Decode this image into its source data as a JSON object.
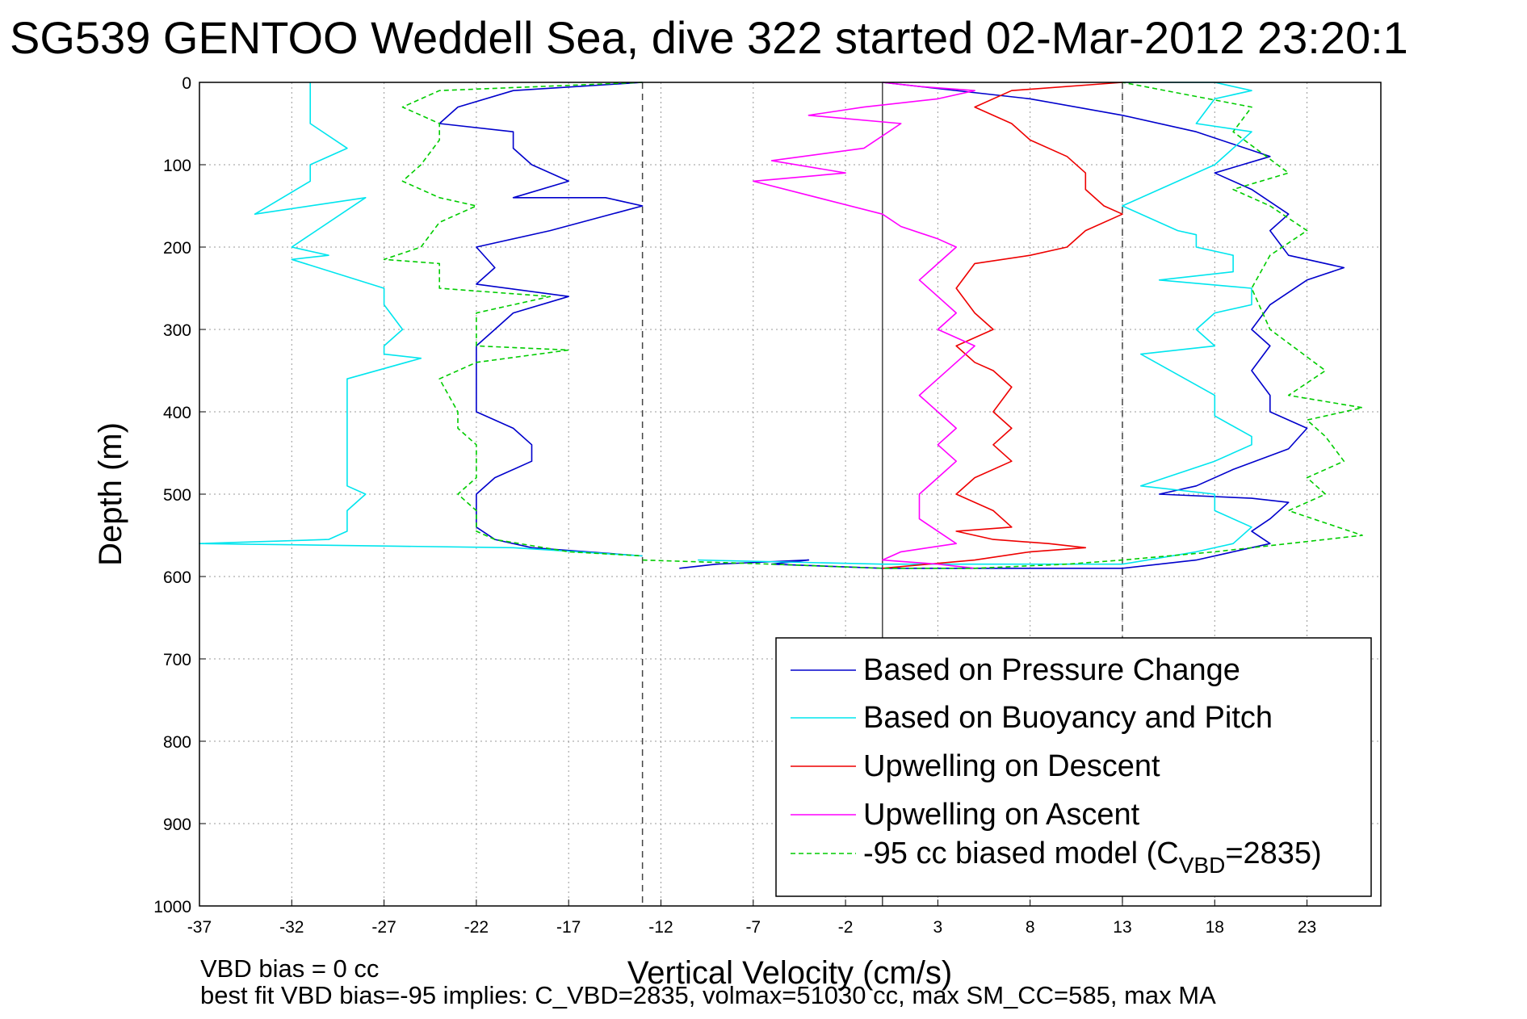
{
  "chart_data": {
    "type": "line",
    "title": "SG539 GENTOO Weddell Sea, dive 322 started 02-Mar-2012 23:20:1",
    "xlabel": "Vertical Velocity (cm/s)",
    "ylabel": "Depth (m)",
    "xlim": [
      -37,
      27
    ],
    "ylim": [
      1000,
      0
    ],
    "y_reversed": true,
    "grid": true,
    "xticks": [
      -37,
      -32,
      -27,
      -22,
      -17,
      -12,
      -7,
      -2,
      3,
      8,
      13,
      18,
      23
    ],
    "yticks": [
      0,
      100,
      200,
      300,
      400,
      500,
      600,
      700,
      800,
      900,
      1000
    ],
    "legend_position": "lower-right",
    "reference_lines": {
      "solid_vertical_x": 0,
      "dashed_vertical_x": [
        -13,
        13
      ]
    },
    "series": [
      {
        "name": "Based on Pressure Change",
        "color": "#0000cc",
        "style": "solid",
        "descent": {
          "x": [
            -13,
            -20,
            -23,
            -24,
            -20,
            -20,
            -19,
            -17,
            -20,
            -15,
            -13,
            -18,
            -22,
            -21,
            -22,
            -17,
            -20,
            -21,
            -22,
            -22,
            -22,
            -22,
            -20,
            -19,
            -19,
            -21,
            -22,
            -22,
            -22,
            -21,
            -19,
            -13
          ],
          "y": [
            0,
            10,
            30,
            50,
            60,
            80,
            100,
            120,
            140,
            140,
            150,
            180,
            200,
            225,
            245,
            260,
            280,
            300,
            320,
            345,
            380,
            400,
            420,
            440,
            460,
            480,
            500,
            520,
            540,
            555,
            565,
            575
          ]
        },
        "ascent": {
          "x": [
            -11,
            -9,
            -4,
            -6,
            0,
            13,
            17,
            21,
            20,
            21,
            22,
            20,
            15,
            17,
            19,
            22,
            23,
            21,
            21,
            20,
            21,
            20,
            21,
            23,
            25,
            22,
            21,
            22,
            20,
            18,
            21,
            17,
            13,
            8,
            0
          ],
          "y": [
            590,
            585,
            580,
            585,
            590,
            590,
            580,
            560,
            545,
            530,
            510,
            505,
            500,
            490,
            470,
            445,
            420,
            400,
            380,
            350,
            320,
            300,
            270,
            240,
            225,
            210,
            180,
            160,
            130,
            110,
            90,
            60,
            40,
            20,
            0
          ]
        }
      },
      {
        "name": "Based on Buoyancy and Pitch",
        "color": "#00e5ee",
        "style": "solid",
        "descent": {
          "x": [
            -31,
            -31,
            -31,
            -29,
            -31,
            -31,
            -34,
            -28,
            -32,
            -30,
            -32,
            -27,
            -27,
            -26,
            -27,
            -27,
            -25,
            -29,
            -29,
            -29,
            -29,
            -29,
            -28,
            -29,
            -29,
            -30,
            -37,
            -20,
            -13
          ],
          "y": [
            0,
            10,
            50,
            80,
            100,
            120,
            160,
            140,
            200,
            210,
            215,
            250,
            270,
            300,
            320,
            330,
            335,
            360,
            400,
            440,
            470,
            490,
            500,
            520,
            545,
            555,
            560,
            565,
            575
          ]
        },
        "ascent": {
          "x": [
            -10,
            0,
            13,
            17,
            19,
            20,
            18,
            18,
            18,
            14,
            18,
            20,
            20,
            18,
            18,
            14,
            18,
            17,
            18,
            20,
            20,
            15,
            19,
            19,
            17,
            17,
            16,
            13,
            18,
            20,
            17,
            18,
            20,
            18,
            13
          ],
          "y": [
            580,
            585,
            585,
            570,
            560,
            540,
            520,
            505,
            500,
            490,
            460,
            440,
            430,
            405,
            380,
            330,
            320,
            300,
            280,
            270,
            250,
            240,
            230,
            210,
            200,
            185,
            180,
            150,
            100,
            60,
            50,
            20,
            10,
            0,
            0
          ]
        }
      },
      {
        "name": "Upwelling on Descent",
        "color": "#ee0000",
        "style": "solid",
        "descent": {
          "x": [
            13,
            7,
            5,
            7,
            8,
            10,
            11,
            11,
            12,
            13,
            11,
            10,
            8,
            5,
            4,
            5,
            6,
            4,
            5,
            6,
            7,
            6,
            7,
            6,
            7,
            5,
            4,
            6,
            7,
            4,
            6,
            9,
            11,
            8,
            5,
            0
          ],
          "y": [
            0,
            10,
            30,
            50,
            70,
            90,
            110,
            130,
            150,
            160,
            180,
            200,
            210,
            220,
            250,
            280,
            300,
            320,
            340,
            350,
            370,
            400,
            420,
            440,
            460,
            480,
            500,
            520,
            540,
            545,
            555,
            560,
            565,
            570,
            580,
            590
          ]
        }
      },
      {
        "name": "Upwelling on Ascent",
        "color": "#ff00ff",
        "style": "solid",
        "ascent": {
          "x": [
            5,
            3,
            0,
            1,
            4,
            3,
            2,
            2,
            3,
            4,
            3,
            4,
            3,
            2,
            3,
            4,
            5,
            3,
            4,
            3,
            2,
            3,
            4,
            3,
            1,
            0,
            -7,
            -2,
            -6,
            -1,
            1,
            -4,
            -1,
            3,
            5,
            2,
            0
          ],
          "y": [
            590,
            585,
            580,
            570,
            560,
            545,
            530,
            500,
            480,
            460,
            440,
            420,
            400,
            380,
            360,
            340,
            320,
            300,
            280,
            260,
            240,
            220,
            200,
            190,
            175,
            160,
            120,
            110,
            95,
            80,
            50,
            40,
            30,
            20,
            10,
            5,
            0
          ]
        }
      },
      {
        "name": "-95 cc biased model (C_VBD=2835)",
        "color": "#00cc00",
        "style": "dashed",
        "descent": {
          "x": [
            -13,
            -24,
            -26,
            -24,
            -24,
            -25,
            -26,
            -24,
            -22,
            -24,
            -25,
            -27,
            -24,
            -24,
            -18,
            -22,
            -22,
            -22,
            -17,
            -22,
            -24,
            -23,
            -23,
            -22,
            -22,
            -23,
            -22,
            -22,
            -21,
            -17,
            -13
          ],
          "y": [
            0,
            10,
            30,
            50,
            70,
            100,
            120,
            140,
            150,
            170,
            200,
            215,
            220,
            250,
            260,
            280,
            300,
            320,
            325,
            340,
            360,
            400,
            420,
            440,
            480,
            500,
            520,
            545,
            555,
            570,
            575
          ]
        },
        "ascent": {
          "x": [
            -13,
            -6,
            0,
            5,
            10,
            13,
            18,
            22,
            26,
            22,
            24,
            23,
            25,
            24,
            23,
            26,
            22,
            24,
            21,
            20,
            21,
            23,
            21,
            19,
            22,
            19,
            20,
            13
          ],
          "y": [
            580,
            585,
            590,
            590,
            585,
            580,
            570,
            560,
            550,
            520,
            500,
            480,
            460,
            430,
            410,
            395,
            380,
            350,
            300,
            250,
            210,
            180,
            150,
            130,
            110,
            60,
            30,
            0
          ]
        }
      }
    ],
    "annotations": [
      "VBD bias = 0 cc",
      "best fit VBD bias=-95 implies: C_VBD=2835, volmax=51030 cc, max SM_CC=585, max MA"
    ]
  },
  "legend": [
    {
      "label": "Based on Pressure Change",
      "color": "#0000cc",
      "dashed": false
    },
    {
      "label": "Based on Buoyancy and Pitch",
      "color": "#00e5ee",
      "dashed": false
    },
    {
      "label": "Upwelling on Descent",
      "color": "#ee0000",
      "dashed": false
    },
    {
      "label": "Upwelling on Ascent",
      "color": "#ff00ff",
      "dashed": false
    },
    {
      "label": "-95 cc biased model (C",
      "sub": "VBD",
      "label_tail": "=2835)",
      "color": "#00cc00",
      "dashed": true
    }
  ]
}
